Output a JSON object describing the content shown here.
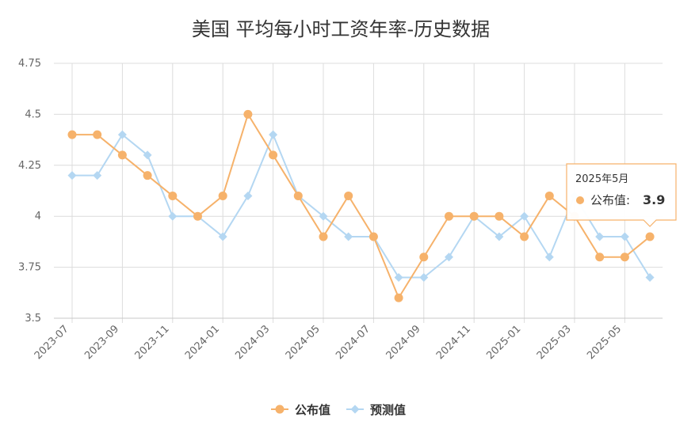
{
  "chart_data": {
    "type": "line",
    "title": "美国 平均每小时工资年率-历史数据",
    "xlabel": "",
    "ylabel": "",
    "ylim": [
      3.5,
      4.75
    ],
    "yticks": [
      "3.5",
      "3.75",
      "4",
      "4.25",
      "4.5",
      "4.75"
    ],
    "x": [
      "2023-07",
      "2023-08",
      "2023-09",
      "2023-10",
      "2023-11",
      "2023-12",
      "2024-01",
      "2024-02",
      "2024-03",
      "2024-04",
      "2024-05",
      "2024-06",
      "2024-07",
      "2024-08",
      "2024-09",
      "2024-10",
      "2024-11",
      "2024-12",
      "2025-01",
      "2025-02",
      "2025-03",
      "2025-04",
      "2025-05",
      "2025-06"
    ],
    "xtick_labels": [
      "2023-07",
      "2023-09",
      "2023-11",
      "2024-01",
      "2024-03",
      "2024-05",
      "2024-07",
      "2024-09",
      "2024-11",
      "2025-01",
      "2025-03",
      "2025-05"
    ],
    "series": [
      {
        "name": "公布值",
        "color": "#f6b26b",
        "values": [
          4.4,
          4.4,
          4.3,
          4.2,
          4.1,
          4.0,
          4.1,
          4.5,
          4.3,
          4.1,
          3.9,
          4.1,
          3.9,
          3.6,
          3.8,
          4.0,
          4.0,
          4.0,
          3.9,
          4.1,
          4.0,
          3.8,
          3.8,
          3.9
        ]
      },
      {
        "name": "预测值",
        "color": "#b4d7f2",
        "values": [
          4.2,
          4.2,
          4.4,
          4.3,
          4.0,
          4.0,
          3.9,
          4.1,
          4.4,
          4.1,
          4.0,
          3.9,
          3.9,
          3.7,
          3.7,
          3.8,
          4.0,
          3.9,
          4.0,
          3.8,
          4.1,
          3.9,
          3.9,
          3.7
        ]
      }
    ],
    "grid": true,
    "legend_position": "bottom-center",
    "tooltip": {
      "date": "2025年5月",
      "label": "公布值:",
      "value": "3.9",
      "index": 23
    }
  }
}
